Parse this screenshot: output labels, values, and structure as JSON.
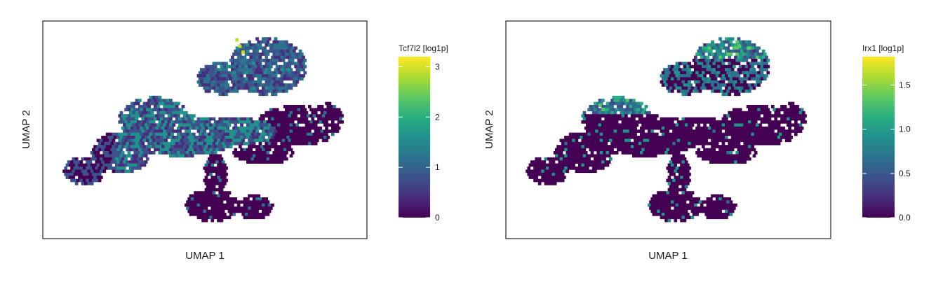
{
  "chart_data": [
    {
      "type": "hexbin-scatter",
      "xlabel": "UMAP 1",
      "ylabel": "UMAP 2",
      "colorbar": {
        "title": "Tcf7l2 [log1p]",
        "range": [
          0,
          3.2
        ],
        "ticks": [
          0,
          1,
          2,
          3
        ],
        "tick_labels": [
          "0",
          "1",
          "2",
          "3"
        ],
        "colormap": "viridis"
      },
      "regions": [
        {
          "name": "upper-right cluster",
          "level": 0.6
        },
        {
          "name": "central band",
          "level": 0.5
        },
        {
          "name": "left cluster",
          "level": 0.5
        },
        {
          "name": "right wing",
          "level": 0.05
        },
        {
          "name": "bottom lobe",
          "level": 0.05
        },
        {
          "name": "top stalk",
          "level": 2.3
        }
      ]
    },
    {
      "type": "hexbin-scatter",
      "xlabel": "UMAP 1",
      "ylabel": "UMAP 2",
      "colorbar": {
        "title": "Irx1 [log1p]",
        "range": [
          0,
          1.82
        ],
        "ticks": [
          0,
          0.5,
          1,
          1.5
        ],
        "tick_labels": [
          "0.0",
          "0.5",
          "1.0",
          "1.5"
        ],
        "colormap": "viridis"
      },
      "regions": [
        {
          "name": "upper-right cluster",
          "level": 0.4
        },
        {
          "name": "upper-right tip",
          "level": 1.6
        },
        {
          "name": "left cluster top",
          "level": 1.0
        },
        {
          "name": "central band",
          "level": 0.05
        },
        {
          "name": "right wing",
          "level": 0.02
        },
        {
          "name": "bottom lobe",
          "level": 0.01
        }
      ]
    }
  ]
}
